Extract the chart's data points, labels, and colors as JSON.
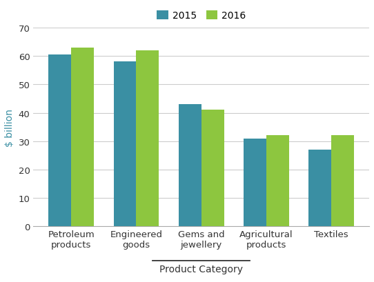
{
  "categories": [
    "Petroleum\nproducts",
    "Engineered\ngoods",
    "Gems and\njewellery",
    "Agricultural\nproducts",
    "Textiles"
  ],
  "values_2015": [
    60.5,
    58,
    43,
    31,
    27
  ],
  "values_2016": [
    63,
    62,
    41,
    32,
    32
  ],
  "color_2015": "#3a8fa3",
  "color_2016": "#8dc63f",
  "ylabel": "$ billion",
  "xlabel": "Product Category",
  "legend_2015": "2015",
  "legend_2016": "2016",
  "ylim": [
    0,
    70
  ],
  "yticks": [
    0,
    10,
    20,
    30,
    40,
    50,
    60,
    70
  ],
  "ylabel_color": "#3a8fa3",
  "xlabel_color": "#333333",
  "tick_color": "#333333",
  "grid_color": "#cccccc",
  "axis_label_fontsize": 10,
  "tick_fontsize": 9.5,
  "legend_fontsize": 10,
  "bar_width": 0.35,
  "background_color": "#ffffff"
}
